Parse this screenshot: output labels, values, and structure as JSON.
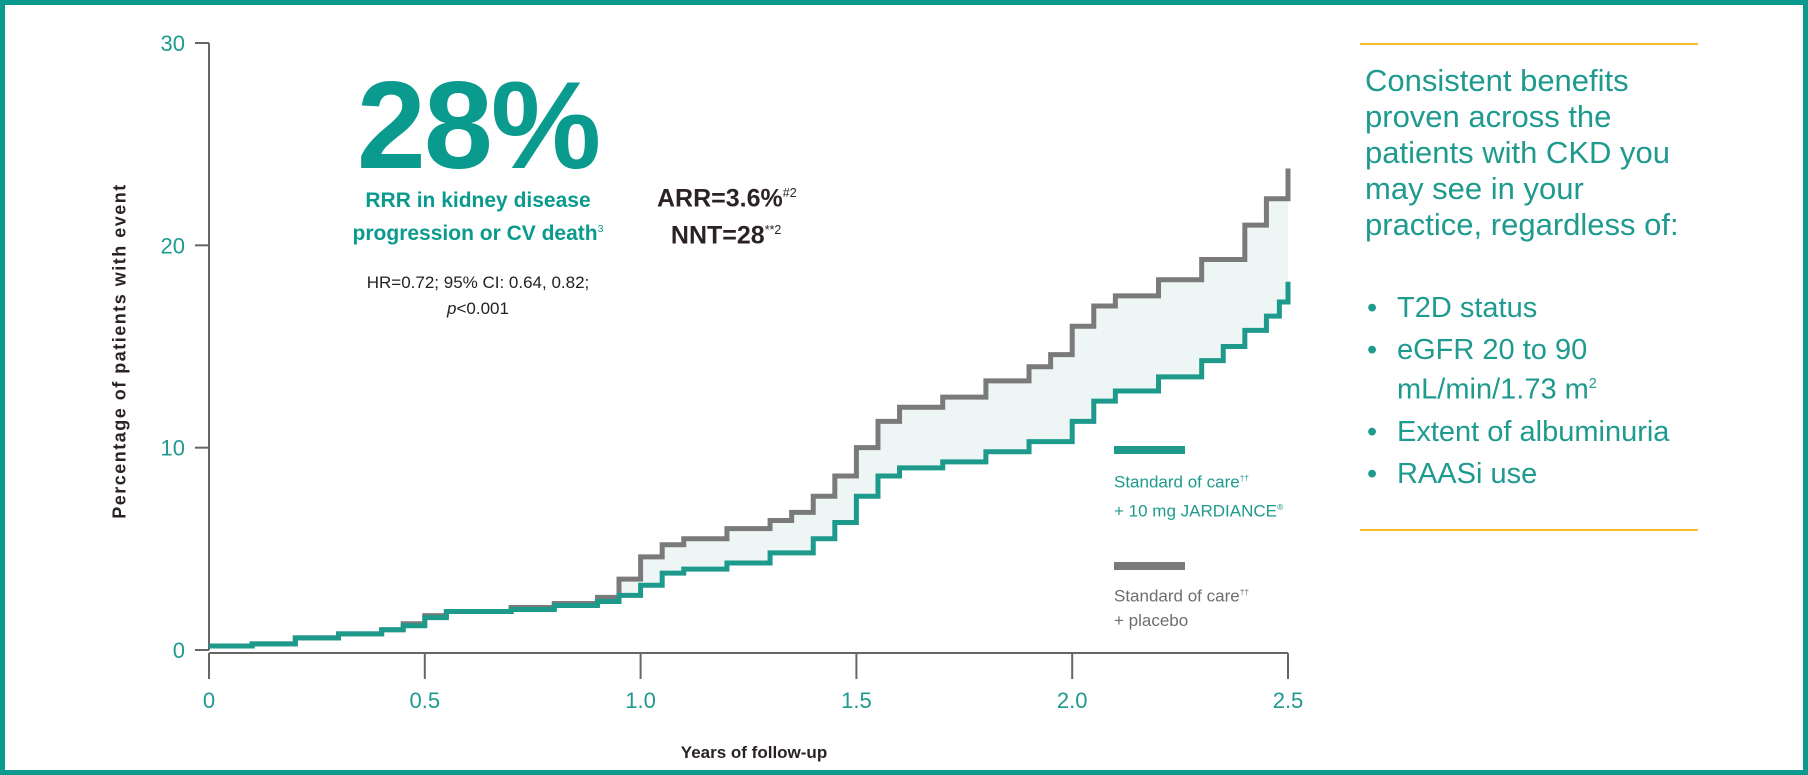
{
  "colors": {
    "jardiance": "#1e9a8c",
    "placebo": "#7a7a7a",
    "band": "#eef6f5",
    "axis_text": "#1f9a8e",
    "accent_line": "#f5be2a",
    "border": "#0a9a8e"
  },
  "headline": {
    "value": "28%",
    "label_line1": "RRR in kidney disease",
    "label_line2": "progression or CV death",
    "label_sup": "3",
    "stats_line1": "HR=0.72; 95% CI: 0.64, 0.82;",
    "stats_p": "p",
    "stats_line2": "<0.001"
  },
  "arr": {
    "text": "ARR=3.6%",
    "sup": "#2"
  },
  "nnt": {
    "text": "NNT=28",
    "sup": "**2"
  },
  "sidebar": {
    "title": "Consistent benefits proven across the patients with CKD you may see in your practice, regardless of:",
    "bullets": [
      "T2D status",
      "eGFR 20 to 90 mL/min/1.73 m",
      "Extent of albuminuria",
      "RAASi use"
    ],
    "egfr_sup": "2"
  },
  "chart_data": {
    "type": "line",
    "step": true,
    "xlabel": "Years of follow-up",
    "ylabel": "Percentage of patients with event",
    "xlim": [
      0,
      2.5
    ],
    "ylim": [
      0,
      30
    ],
    "xticks": [
      "0",
      "0.5",
      "1.0",
      "1.5",
      "2.0",
      "2.5"
    ],
    "yticks": [
      "0",
      "10",
      "20",
      "30"
    ],
    "grid": false,
    "legend_position": "right",
    "series": [
      {
        "name": "Standard of care†† + 10 mg JARDIANCE®",
        "name_line1": "Standard of care",
        "name_sup": "††",
        "name_line2": "+ 10 mg JARDIANCE",
        "name_reg": "®",
        "x": [
          0,
          0.1,
          0.2,
          0.3,
          0.4,
          0.45,
          0.5,
          0.55,
          0.7,
          0.8,
          0.9,
          0.95,
          1.0,
          1.05,
          1.1,
          1.2,
          1.3,
          1.4,
          1.45,
          1.5,
          1.55,
          1.6,
          1.7,
          1.8,
          1.9,
          2.0,
          2.05,
          2.1,
          2.2,
          2.3,
          2.35,
          2.4,
          2.45,
          2.48,
          2.5
        ],
        "y": [
          0.2,
          0.3,
          0.6,
          0.8,
          1.0,
          1.2,
          1.6,
          1.9,
          2.0,
          2.2,
          2.4,
          2.7,
          3.2,
          3.8,
          4.0,
          4.3,
          4.8,
          5.5,
          6.3,
          7.6,
          8.6,
          9.0,
          9.3,
          9.8,
          10.3,
          11.3,
          12.3,
          12.8,
          13.5,
          14.3,
          15.0,
          15.8,
          16.5,
          17.2,
          18.2
        ]
      },
      {
        "name": "Standard of care†† + placebo",
        "name_line1": "Standard of care",
        "name_sup": "††",
        "name_line2": "+ placebo",
        "x": [
          0,
          0.1,
          0.2,
          0.3,
          0.4,
          0.45,
          0.5,
          0.55,
          0.7,
          0.8,
          0.9,
          0.95,
          1.0,
          1.05,
          1.1,
          1.2,
          1.3,
          1.35,
          1.4,
          1.45,
          1.5,
          1.55,
          1.6,
          1.7,
          1.8,
          1.9,
          1.95,
          2.0,
          2.05,
          2.1,
          2.2,
          2.3,
          2.4,
          2.45,
          2.5
        ],
        "y": [
          0.2,
          0.3,
          0.6,
          0.8,
          1.0,
          1.3,
          1.7,
          1.9,
          2.1,
          2.3,
          2.6,
          3.5,
          4.6,
          5.2,
          5.5,
          6.0,
          6.4,
          6.8,
          7.6,
          8.6,
          10.0,
          11.3,
          12.0,
          12.5,
          13.3,
          14.0,
          14.6,
          16.0,
          17.0,
          17.5,
          18.3,
          19.3,
          21.0,
          22.3,
          23.8
        ]
      }
    ]
  }
}
